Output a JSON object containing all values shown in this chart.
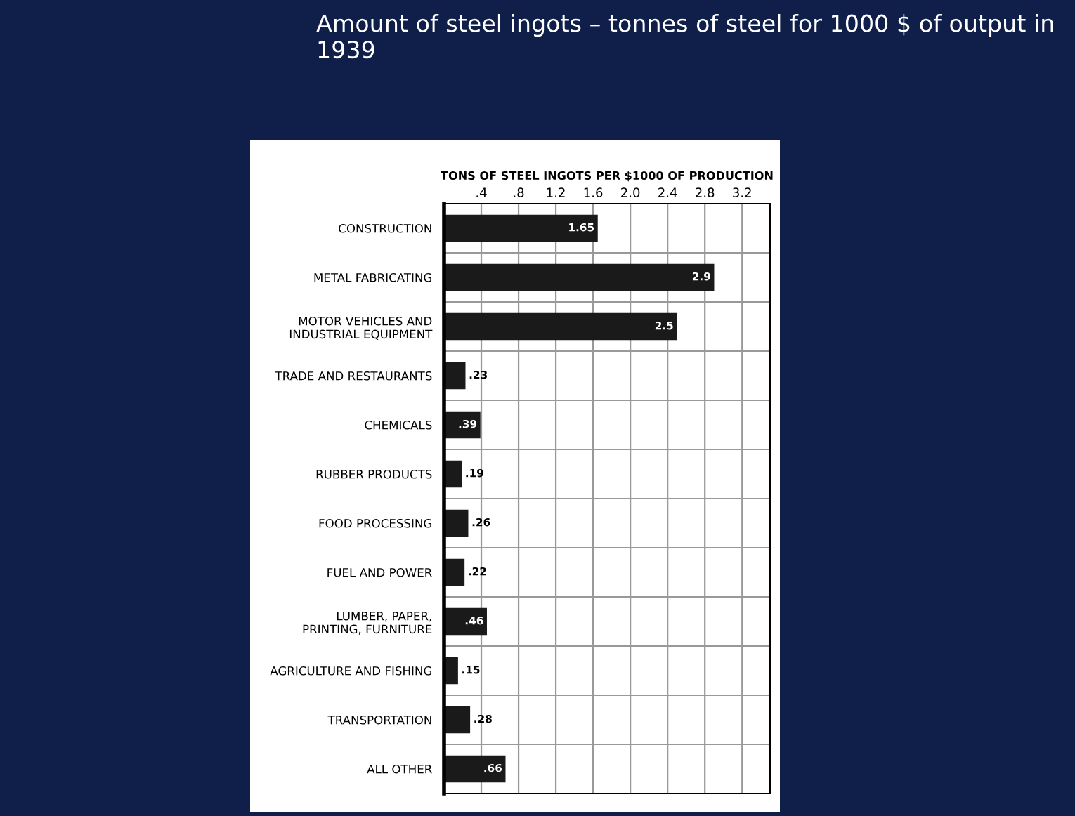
{
  "chart_data": {
    "type": "bar",
    "orientation": "horizontal",
    "title": "Amount of steel ingots – tonnes of steel for 1000 $ of output in 1939",
    "xlabel": "TONS OF STEEL INGOTS PER $1000 OF PRODUCTION",
    "categories": [
      "CONSTRUCTION",
      "METAL FABRICATING",
      "MOTOR VEHICLES AND\nINDUSTRIAL EQUIPMENT",
      "TRADE AND RESTAURANTS",
      "CHEMICALS",
      "RUBBER PRODUCTS",
      "FOOD PROCESSING",
      "FUEL AND POWER",
      "LUMBER, PAPER,\nPRINTING, FURNITURE",
      "AGRICULTURE AND FISHING",
      "TRANSPORTATION",
      "ALL OTHER"
    ],
    "values": [
      1.65,
      2.9,
      2.5,
      0.23,
      0.39,
      0.19,
      0.26,
      0.22,
      0.46,
      0.15,
      0.28,
      0.66
    ],
    "value_labels": [
      "1.65",
      "2.9",
      "2.5",
      ".23",
      ".39",
      ".19",
      ".26",
      ".22",
      ".46",
      ".15",
      ".28",
      ".66"
    ],
    "color": "#1a1a1a",
    "xlim": [
      0,
      3.5
    ],
    "xticks": [
      {
        "value": 0.4,
        "label": ".4"
      },
      {
        "value": 0.8,
        "label": ".8"
      },
      1.2,
      1.6,
      {
        "value": 2.0,
        "label": "2.0"
      },
      2.4,
      2.8,
      3.2
    ],
    "grid": "x",
    "legend": false
  }
}
